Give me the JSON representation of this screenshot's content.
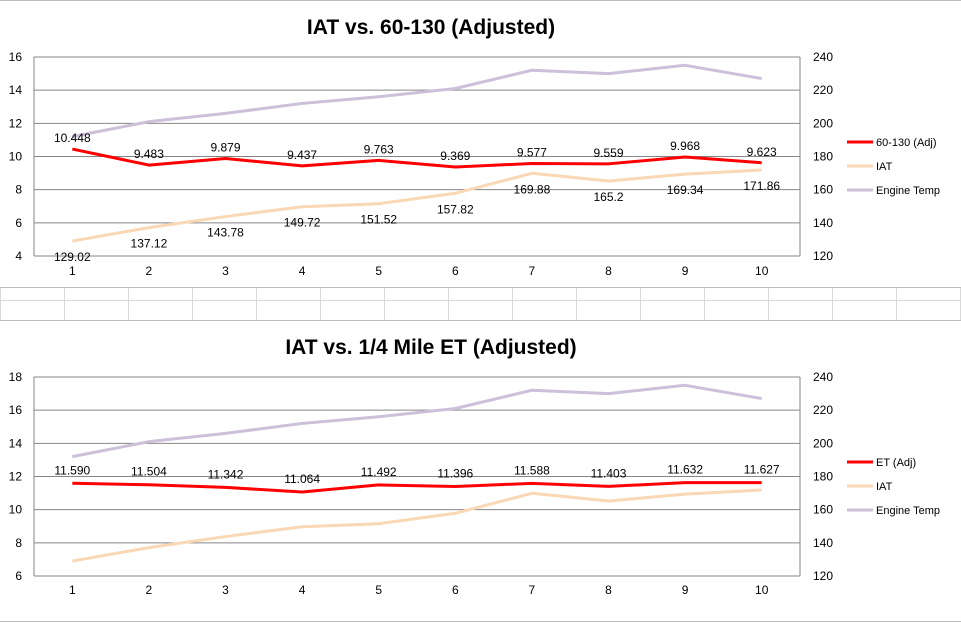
{
  "chart_data": [
    {
      "type": "line",
      "title": "IAT vs. 60-130 (Adjusted)",
      "categories": [
        "1",
        "2",
        "3",
        "4",
        "5",
        "6",
        "7",
        "8",
        "9",
        "10"
      ],
      "y_left": {
        "min": 4,
        "max": 16,
        "ticks": [
          "4",
          "6",
          "8",
          "10",
          "12",
          "14",
          "16"
        ]
      },
      "y_right": {
        "min": 120,
        "max": 240,
        "ticks": [
          "120",
          "140",
          "160",
          "180",
          "200",
          "220",
          "240"
        ]
      },
      "grid": true,
      "legend_position": "right",
      "series": [
        {
          "name": "60-130 (Adj)",
          "axis": "left",
          "color": "#ff0000",
          "width": 3,
          "values": [
            10.448,
            9.483,
            9.879,
            9.437,
            9.763,
            9.369,
            9.577,
            9.559,
            9.968,
            9.623
          ],
          "labels": [
            "10.448",
            "9.483",
            "9.879",
            "9.437",
            "9.763",
            "9.369",
            "9.577",
            "9.559",
            "9.968",
            "9.623"
          ],
          "label_position": "above"
        },
        {
          "name": "IAT",
          "axis": "right",
          "color": "#fad7b5",
          "width": 3,
          "values": [
            129.02,
            137.12,
            143.78,
            149.72,
            151.52,
            157.82,
            169.88,
            165.2,
            169.34,
            171.86
          ],
          "labels": [
            "129.02",
            "137.12",
            "143.78",
            "149.72",
            "151.52",
            "157.82",
            "169.88",
            "165.2",
            "169.34",
            "171.86"
          ],
          "label_position": "below"
        },
        {
          "name": "Engine Temp",
          "axis": "right",
          "color": "#ccc0da",
          "width": 3,
          "values": [
            192,
            201,
            206,
            212,
            216,
            221,
            232,
            230,
            235,
            227
          ]
        }
      ]
    },
    {
      "type": "line",
      "title": "IAT vs. 1/4 Mile ET (Adjusted)",
      "categories": [
        "1",
        "2",
        "3",
        "4",
        "5",
        "6",
        "7",
        "8",
        "9",
        "10"
      ],
      "y_left": {
        "min": 6,
        "max": 18,
        "ticks": [
          "6",
          "8",
          "10",
          "12",
          "14",
          "16",
          "18"
        ]
      },
      "y_right": {
        "min": 120,
        "max": 240,
        "ticks": [
          "120",
          "140",
          "160",
          "180",
          "200",
          "220",
          "240"
        ]
      },
      "grid": true,
      "legend_position": "right",
      "series": [
        {
          "name": "ET (Adj)",
          "axis": "left",
          "color": "#ff0000",
          "width": 3,
          "values": [
            11.59,
            11.504,
            11.342,
            11.064,
            11.492,
            11.396,
            11.588,
            11.403,
            11.632,
            11.627
          ],
          "labels": [
            "11.590",
            "11.504",
            "11.342",
            "11.064",
            "11.492",
            "11.396",
            "11.588",
            "11.403",
            "11.632",
            "11.627"
          ],
          "label_position": "above"
        },
        {
          "name": "IAT",
          "axis": "right",
          "color": "#fad7b5",
          "width": 3,
          "values": [
            129.02,
            137.12,
            143.78,
            149.72,
            151.52,
            157.82,
            169.88,
            165.2,
            169.34,
            171.86
          ]
        },
        {
          "name": "Engine Temp",
          "axis": "right",
          "color": "#ccc0da",
          "width": 3,
          "values": [
            192,
            201,
            206,
            212,
            216,
            221,
            232,
            230,
            235,
            227
          ]
        }
      ]
    }
  ]
}
